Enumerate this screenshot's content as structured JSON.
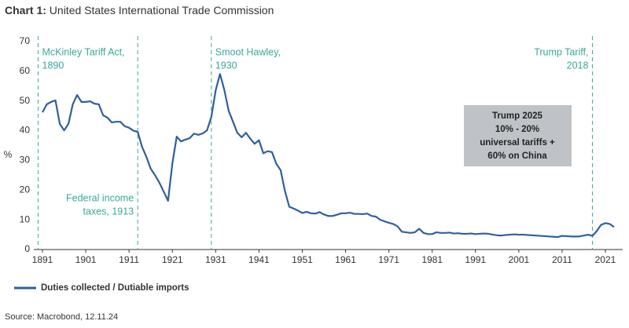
{
  "chart_data": {
    "type": "line",
    "title_prefix": "Chart 1:",
    "title": "United States International Trade Commission",
    "y_label": "%",
    "source": "Source: Macrobond, 12.11.24",
    "x": [
      1891,
      1892,
      1893,
      1894,
      1895,
      1896,
      1897,
      1898,
      1899,
      1900,
      1901,
      1902,
      1903,
      1904,
      1905,
      1906,
      1907,
      1908,
      1909,
      1910,
      1911,
      1912,
      1913,
      1914,
      1915,
      1916,
      1917,
      1918,
      1919,
      1920,
      1921,
      1922,
      1923,
      1924,
      1925,
      1926,
      1927,
      1928,
      1929,
      1930,
      1931,
      1932,
      1933,
      1934,
      1935,
      1936,
      1937,
      1938,
      1939,
      1940,
      1941,
      1942,
      1943,
      1944,
      1945,
      1946,
      1947,
      1948,
      1949,
      1950,
      1951,
      1952,
      1953,
      1954,
      1955,
      1956,
      1957,
      1958,
      1959,
      1960,
      1961,
      1962,
      1963,
      1964,
      1965,
      1966,
      1967,
      1968,
      1969,
      1970,
      1971,
      1972,
      1973,
      1974,
      1975,
      1976,
      1977,
      1978,
      1979,
      1980,
      1981,
      1982,
      1983,
      1984,
      1985,
      1986,
      1987,
      1988,
      1989,
      1990,
      1991,
      1992,
      1993,
      1994,
      1995,
      1996,
      1997,
      1998,
      1999,
      2000,
      2001,
      2002,
      2003,
      2004,
      2005,
      2006,
      2007,
      2008,
      2009,
      2010,
      2011,
      2012,
      2013,
      2014,
      2015,
      2016,
      2017,
      2018,
      2019,
      2020,
      2021,
      2022,
      2023
    ],
    "series": [
      {
        "name": "Duties collected / Dutiable imports",
        "color": "#2f5f9f",
        "values": [
          46.2,
          48.9,
          49.7,
          50.2,
          42.3,
          40.1,
          42.3,
          48.9,
          52,
          49.7,
          49.7,
          49.9,
          49.1,
          48.9,
          45.2,
          44.4,
          42.8,
          43,
          43,
          41.5,
          41,
          40,
          39.6,
          34.6,
          31.2,
          27.2,
          25,
          22.5,
          19.5,
          16.4,
          29,
          38,
          36.4,
          37,
          37.5,
          39,
          38.6,
          39.1,
          40.1,
          44.7,
          53.6,
          59.1,
          53.7,
          46.7,
          43,
          39.3,
          37.8,
          39.3,
          37.3,
          35.6,
          36.8,
          32.4,
          33.1,
          32.8,
          28.9,
          26.7,
          19.7,
          14.4,
          13.8,
          13.1,
          12.3,
          12.7,
          12.2,
          12.1,
          12.6,
          11.8,
          11.3,
          11.3,
          11.7,
          12.2,
          12.2,
          12.4,
          12,
          12,
          11.9,
          12.1,
          11.3,
          11.1,
          10,
          9.5,
          9,
          8.6,
          7.8,
          6,
          5.8,
          5.6,
          5.8,
          7,
          5.6,
          5.2,
          5.2,
          5.8,
          5.6,
          5.6,
          5.7,
          5.4,
          5.5,
          5.3,
          5.3,
          5.4,
          5.2,
          5.3,
          5.4,
          5.3,
          5,
          4.8,
          4.7,
          4.9,
          5,
          5.1,
          5,
          5,
          4.9,
          4.8,
          4.7,
          4.6,
          4.5,
          4.4,
          4.3,
          4.2,
          4.6,
          4.5,
          4.4,
          4.4,
          4.4,
          4.7,
          5,
          4.6,
          6.2,
          8.3,
          8.9,
          8.6,
          7.6
        ]
      }
    ],
    "xlim": [
      1889,
      2025
    ],
    "xticks": [
      1891,
      1901,
      1911,
      1921,
      1931,
      1941,
      1951,
      1961,
      1971,
      1981,
      1991,
      2001,
      2011,
      2021
    ],
    "ylim": [
      0,
      70
    ],
    "yticks": [
      0,
      10,
      20,
      30,
      40,
      50,
      60,
      70
    ],
    "vlines": [
      {
        "x": 1890,
        "label": [
          "McKinley Tariff Act,",
          "1890"
        ]
      },
      {
        "x": 1913,
        "label": [
          "Federal income",
          "taxes, 1913"
        ]
      },
      {
        "x": 1930,
        "label": [
          "Smoot Hawley,",
          "1930"
        ]
      },
      {
        "x": 2018,
        "label": [
          "Trump Tariff,",
          "2018"
        ]
      }
    ],
    "vline_color": "#3aa89a",
    "box_annotation": {
      "lines": [
        "Trump 2025",
        "10% - 20%",
        "universal tariffs +",
        "60% on China"
      ],
      "color": "#bfc3c8"
    },
    "legend": "bottom-left"
  }
}
